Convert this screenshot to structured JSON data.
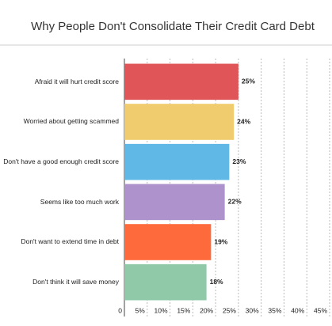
{
  "chart_data": {
    "type": "bar",
    "orientation": "horizontal",
    "title": "Why People Don't Consolidate Their Credit Card Debt",
    "categories": [
      "Afraid it will hurt credit score",
      "Worried about getting scammed",
      "Don't have a good enough credit score",
      "Seems like too much work",
      "Don't want to extend time in debt",
      "Don't think it will save money"
    ],
    "values": [
      25,
      24,
      23,
      22,
      19,
      18
    ],
    "value_labels": [
      "25%",
      "24%",
      "23%",
      "22%",
      "19%",
      "18%"
    ],
    "colors": [
      "#e05558",
      "#f0cc6e",
      "#5fb8e6",
      "#ad92cb",
      "#ff6a3d",
      "#8fc9a8"
    ],
    "xlim": [
      0,
      45
    ],
    "xticks": [
      0,
      {
        "value": 5,
        "label": "5%"
      },
      {
        "value": 10,
        "label": "10%"
      },
      {
        "value": 15,
        "label": "15%"
      },
      {
        "value": 20,
        "label": "20%"
      },
      {
        "value": 25,
        "label": "25%"
      },
      {
        "value": 30,
        "label": "30%"
      },
      {
        "value": 35,
        "label": "35%"
      },
      {
        "value": 40,
        "label": "40%"
      },
      {
        "value": 45,
        "label": "45%"
      }
    ],
    "grid": true
  }
}
